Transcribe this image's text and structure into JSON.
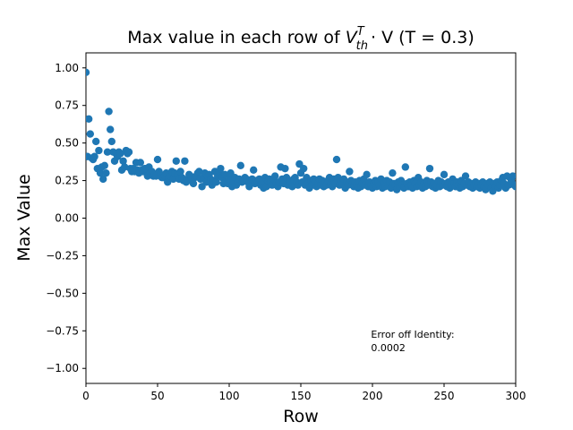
{
  "chart_data": {
    "type": "scatter",
    "title_prefix": "Max value in each row of ",
    "title_math_base": "V",
    "title_math_sup": "T",
    "title_math_sub": "th",
    "title_math_rest": "· V",
    "title_suffix": " (T = 0.3)",
    "xlabel": "Row",
    "ylabel": "Max Value",
    "xlim": [
      0,
      300
    ],
    "ylim": [
      -1.1,
      1.1
    ],
    "xticks": [
      0,
      50,
      100,
      150,
      200,
      250,
      300
    ],
    "yticks": [
      -1.0,
      -0.75,
      -0.5,
      -0.25,
      0.0,
      0.25,
      0.5,
      0.75,
      1.0
    ],
    "ytick_labels": [
      "−1.00",
      "−0.75",
      "−0.50",
      "−0.25",
      "0.00",
      "0.25",
      "0.50",
      "0.75",
      "1.00"
    ],
    "xtick_labels": [
      "0",
      "50",
      "100",
      "150",
      "200",
      "250",
      "300"
    ],
    "marker_color": "#1f77b4",
    "grid": false,
    "annotation_line1": "Error off Identity:",
    "annotation_line2": "0.0002",
    "annotation_pos": [
      199,
      -0.88
    ],
    "series": [
      {
        "x": [
          0,
          1,
          2,
          3,
          4,
          5,
          6,
          7,
          8,
          9,
          10,
          11,
          12,
          13,
          14,
          15,
          16,
          17,
          18,
          19,
          20,
          21,
          22,
          23,
          24,
          25,
          26,
          27,
          28,
          29,
          30,
          31,
          32,
          33,
          34,
          35,
          36,
          37,
          38,
          39,
          40,
          41,
          42,
          43,
          44,
          45,
          46,
          47,
          48,
          49,
          50,
          51,
          52,
          53,
          54,
          55,
          56,
          57,
          58,
          59,
          60,
          61,
          62,
          63,
          64,
          65,
          66,
          67,
          68,
          69,
          70,
          71,
          72,
          73,
          74,
          75,
          76,
          77,
          78,
          79,
          80,
          81,
          82,
          83,
          84,
          85,
          86,
          87,
          88,
          89,
          90,
          91,
          92,
          93,
          94,
          95,
          96,
          97,
          98,
          99,
          100,
          101,
          102,
          103,
          104,
          105,
          106,
          107,
          108,
          109,
          110,
          111,
          112,
          113,
          114,
          115,
          116,
          117,
          118,
          119,
          120,
          121,
          122,
          123,
          124,
          125,
          126,
          127,
          128,
          129,
          130,
          131,
          132,
          133,
          134,
          135,
          136,
          137,
          138,
          139,
          140,
          141,
          142,
          143,
          144,
          145,
          146,
          147,
          148,
          149,
          150,
          151,
          152,
          153,
          154,
          155,
          156,
          157,
          158,
          159,
          160,
          161,
          162,
          163,
          164,
          165,
          166,
          167,
          168,
          169,
          170,
          171,
          172,
          173,
          174,
          175,
          176,
          177,
          178,
          179,
          180,
          181,
          182,
          183,
          184,
          185,
          186,
          187,
          188,
          189,
          190,
          191,
          192,
          193,
          194,
          195,
          196,
          197,
          198,
          199,
          200,
          201,
          202,
          203,
          204,
          205,
          206,
          207,
          208,
          209,
          210,
          211,
          212,
          213,
          214,
          215,
          216,
          217,
          218,
          219,
          220,
          221,
          222,
          223,
          224,
          225,
          226,
          227,
          228,
          229,
          230,
          231,
          232,
          233,
          234,
          235,
          236,
          237,
          238,
          239,
          240,
          241,
          242,
          243,
          244,
          245,
          246,
          247,
          248,
          249,
          250,
          251,
          252,
          253,
          254,
          255,
          256,
          257,
          258,
          259,
          260,
          261,
          262,
          263,
          264,
          265,
          266,
          267,
          268,
          269,
          270,
          271,
          272,
          273,
          274,
          275,
          276,
          277,
          278,
          279,
          280,
          281,
          282,
          283,
          284,
          285,
          286,
          287,
          288,
          289,
          290,
          291,
          292,
          293,
          294,
          295,
          296,
          297,
          298,
          299,
          300
        ],
        "y": [
          0.97,
          0.41,
          0.66,
          0.56,
          0.4,
          0.39,
          0.41,
          0.51,
          0.33,
          0.45,
          0.3,
          0.34,
          0.26,
          0.35,
          0.3,
          0.44,
          0.71,
          0.59,
          0.51,
          0.44,
          0.38,
          0.43,
          0.41,
          0.44,
          0.43,
          0.32,
          0.38,
          0.34,
          0.45,
          0.43,
          0.44,
          0.33,
          0.31,
          0.33,
          0.31,
          0.37,
          0.32,
          0.3,
          0.37,
          0.32,
          0.31,
          0.33,
          0.33,
          0.28,
          0.34,
          0.3,
          0.31,
          0.28,
          0.29,
          0.28,
          0.39,
          0.31,
          0.29,
          0.27,
          0.27,
          0.28,
          0.3,
          0.24,
          0.27,
          0.28,
          0.31,
          0.26,
          0.3,
          0.38,
          0.29,
          0.26,
          0.31,
          0.27,
          0.25,
          0.38,
          0.24,
          0.26,
          0.29,
          0.28,
          0.25,
          0.23,
          0.27,
          0.28,
          0.3,
          0.31,
          0.26,
          0.21,
          0.27,
          0.3,
          0.24,
          0.28,
          0.29,
          0.26,
          0.22,
          0.25,
          0.31,
          0.24,
          0.28,
          0.31,
          0.33,
          0.27,
          0.23,
          0.29,
          0.24,
          0.23,
          0.26,
          0.3,
          0.21,
          0.24,
          0.27,
          0.22,
          0.24,
          0.26,
          0.35,
          0.24,
          0.25,
          0.27,
          0.26,
          0.24,
          0.21,
          0.23,
          0.26,
          0.32,
          0.23,
          0.25,
          0.24,
          0.26,
          0.22,
          0.24,
          0.2,
          0.27,
          0.21,
          0.25,
          0.26,
          0.24,
          0.22,
          0.26,
          0.28,
          0.23,
          0.21,
          0.24,
          0.34,
          0.26,
          0.23,
          0.33,
          0.27,
          0.22,
          0.25,
          0.24,
          0.21,
          0.26,
          0.27,
          0.24,
          0.22,
          0.36,
          0.3,
          0.24,
          0.33,
          0.22,
          0.27,
          0.23,
          0.2,
          0.25,
          0.22,
          0.26,
          0.24,
          0.21,
          0.23,
          0.26,
          0.22,
          0.25,
          0.21,
          0.24,
          0.22,
          0.25,
          0.27,
          0.23,
          0.21,
          0.26,
          0.23,
          0.39,
          0.27,
          0.22,
          0.25,
          0.23,
          0.26,
          0.2,
          0.24,
          0.22,
          0.31,
          0.25,
          0.23,
          0.21,
          0.24,
          0.22,
          0.2,
          0.25,
          0.21,
          0.23,
          0.26,
          0.22,
          0.29,
          0.21,
          0.24,
          0.22,
          0.2,
          0.23,
          0.25,
          0.21,
          0.24,
          0.22,
          0.26,
          0.2,
          0.23,
          0.21,
          0.25,
          0.22,
          0.24,
          0.2,
          0.3,
          0.23,
          0.22,
          0.19,
          0.24,
          0.21,
          0.25,
          0.22,
          0.2,
          0.34,
          0.23,
          0.21,
          0.24,
          0.22,
          0.2,
          0.25,
          0.23,
          0.21,
          0.27,
          0.22,
          0.24,
          0.2,
          0.23,
          0.21,
          0.25,
          0.22,
          0.33,
          0.24,
          0.21,
          0.23,
          0.2,
          0.22,
          0.25,
          0.21,
          0.24,
          0.22,
          0.29,
          0.23,
          0.21,
          0.24,
          0.2,
          0.22,
          0.26,
          0.23,
          0.21,
          0.24,
          0.22,
          0.2,
          0.25,
          0.21,
          0.23,
          0.28,
          0.22,
          0.24,
          0.21,
          0.23,
          0.2,
          0.22,
          0.24,
          0.21,
          0.23,
          0.2,
          0.22,
          0.24,
          0.21,
          0.19,
          0.23,
          0.22,
          0.24,
          0.2,
          0.18,
          0.23,
          0.21,
          0.24,
          0.2,
          0.22,
          0.25,
          0.27,
          0.23,
          0.2,
          0.28,
          0.22,
          0.27,
          0.25,
          0.28,
          0.22,
          0.21
        ]
      }
    ]
  }
}
